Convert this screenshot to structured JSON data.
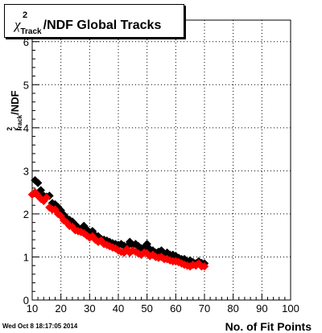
{
  "title": {
    "chi": "χ",
    "sup": "2",
    "sub": "Track",
    "rest": "/NDF  Global Tracks"
  },
  "ylabel": {
    "chi": "χ",
    "sup": "2",
    "sub": "Track",
    "rest": "/NDF"
  },
  "timestamp": "Wed Oct  8 18:17:05 2014",
  "chart_data": {
    "type": "scatter",
    "title": "χ²_Track/NDF  Global Tracks",
    "xlabel": "No. of Fit Points",
    "ylabel": "χ²_Track/NDF",
    "xlim": [
      10,
      100
    ],
    "ylim": [
      0,
      6.5
    ],
    "x_ticks": [
      "10",
      "20",
      "30",
      "40",
      "50",
      "60",
      "70",
      "80",
      "90",
      "100"
    ],
    "y_ticks": [
      "0",
      "1",
      "2",
      "3",
      "4",
      "5",
      "6"
    ],
    "grid": true,
    "colors": {
      "series_black": "#000000",
      "series_red": "#ff0000"
    },
    "series": [
      {
        "x": [
          11,
          12,
          13,
          14,
          15,
          16,
          17,
          18,
          19,
          20,
          21,
          22,
          23,
          24,
          25,
          26,
          27,
          28,
          29,
          30,
          31,
          32,
          33,
          34,
          35,
          36,
          37,
          38,
          39,
          40,
          41,
          42,
          43,
          44,
          45,
          46,
          47,
          48,
          49,
          50,
          51,
          52,
          53,
          54,
          55,
          56,
          57,
          58,
          59,
          60,
          61,
          62,
          63,
          64,
          65,
          66,
          67,
          68,
          69,
          70
        ],
        "y": [
          2.78,
          2.72,
          2.55,
          2.42,
          2.4,
          2.42,
          2.25,
          2.22,
          2.16,
          2.08,
          1.98,
          1.9,
          1.86,
          1.82,
          1.75,
          1.68,
          1.65,
          1.72,
          1.64,
          1.55,
          1.6,
          1.5,
          1.48,
          1.42,
          1.4,
          1.38,
          1.35,
          1.32,
          1.3,
          1.28,
          1.3,
          1.26,
          1.24,
          1.35,
          1.28,
          1.3,
          1.25,
          1.2,
          1.22,
          1.3,
          1.18,
          1.15,
          1.1,
          1.12,
          1.15,
          1.08,
          1.1,
          1.05,
          1.05,
          1.02,
          0.98,
          0.95,
          0.95,
          0.9,
          0.92,
          0.88,
          0.85,
          0.9,
          0.86,
          0.85
        ]
      },
      {
        "x": [
          10,
          11,
          12,
          13,
          14,
          15,
          16,
          17,
          18,
          19,
          20,
          21,
          22,
          23,
          24,
          25,
          26,
          27,
          28,
          29,
          30,
          31,
          32,
          33,
          34,
          35,
          36,
          37,
          38,
          39,
          40,
          41,
          42,
          43,
          44,
          45,
          46,
          47,
          48,
          49,
          50,
          51,
          52,
          53,
          54,
          55,
          56,
          57,
          58,
          59,
          60,
          61,
          62,
          63,
          64,
          65,
          66,
          67,
          68,
          69,
          70
        ],
        "y": [
          2.45,
          2.5,
          2.42,
          2.35,
          2.3,
          2.38,
          2.15,
          2.1,
          2.1,
          2.0,
          1.95,
          1.85,
          1.8,
          1.72,
          1.7,
          1.62,
          1.6,
          1.58,
          1.55,
          1.5,
          1.45,
          1.48,
          1.4,
          1.35,
          1.38,
          1.3,
          1.28,
          1.25,
          1.22,
          1.2,
          1.15,
          1.12,
          1.1,
          1.18,
          1.1,
          1.15,
          1.12,
          1.08,
          1.05,
          1.1,
          1.08,
          1.02,
          1.05,
          1.0,
          0.98,
          1.0,
          0.95,
          0.95,
          0.92,
          0.9,
          0.9,
          0.88,
          0.85,
          0.82,
          0.8,
          0.78,
          0.82,
          0.8,
          0.85,
          0.78,
          0.78
        ]
      }
    ]
  }
}
